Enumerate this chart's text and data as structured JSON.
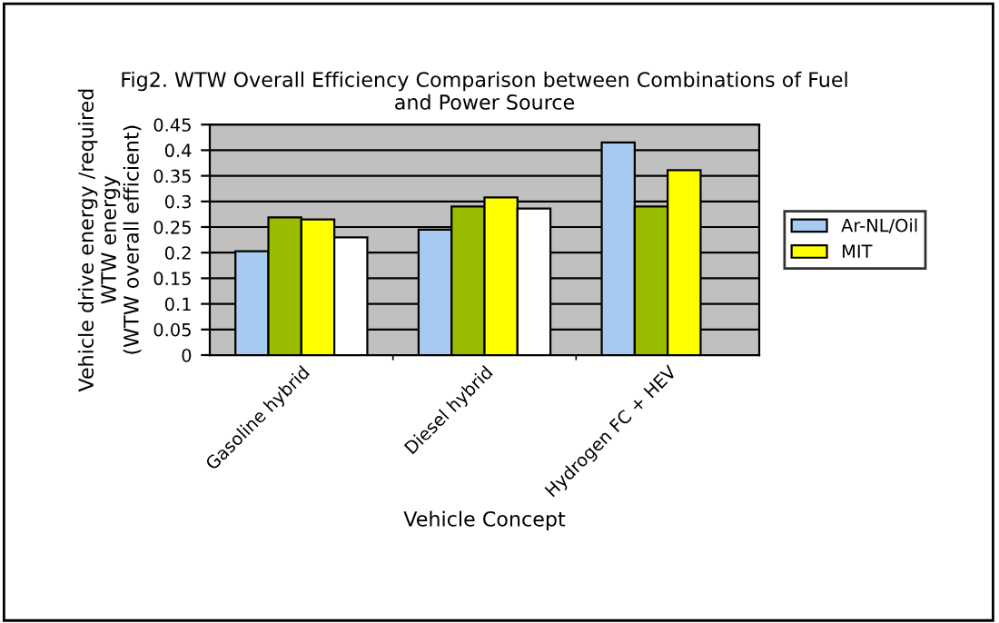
{
  "chart_data": {
    "type": "bar",
    "title": "Fig2. WTW Overall Efficiency Comparison between Combinations of Fuel\nand Power Source",
    "xlabel": "Vehicle Concept",
    "ylabel": "Vehicle drive energy /required\nWTW energy\n(WTW overall efficient)",
    "categories": [
      "Gasoline hybrid",
      "Diesel hybrid",
      "Hydrogen FC + HEV"
    ],
    "series": [
      {
        "name": "Ar-NL/Oil",
        "color": "#a6caf0",
        "values": [
          0.203,
          0.245,
          0.415
        ]
      },
      {
        "color": "#99bb00",
        "values": [
          0.269,
          0.29,
          0.29
        ]
      },
      {
        "name": "MIT",
        "color": "#ffff00",
        "values": [
          0.265,
          0.308,
          0.361
        ]
      },
      {
        "color": "#ffffff",
        "values": [
          0.23,
          0.286,
          null
        ]
      }
    ],
    "ylim": [
      0,
      0.45
    ],
    "yticks": [
      0,
      0.05,
      0.1,
      0.15,
      0.2,
      0.25,
      0.3,
      0.35,
      0.4,
      0.45
    ],
    "grid": "y",
    "legend": "right"
  }
}
